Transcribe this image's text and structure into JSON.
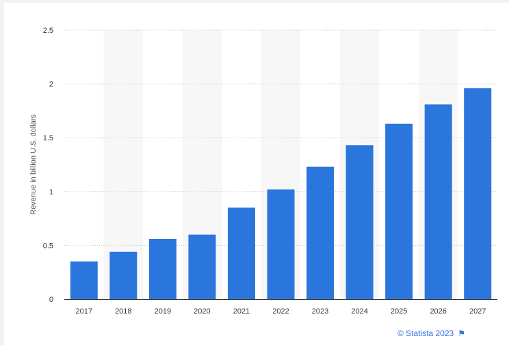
{
  "chart_data": {
    "type": "bar",
    "categories": [
      "2017",
      "2018",
      "2019",
      "2020",
      "2021",
      "2022",
      "2023",
      "2024",
      "2025",
      "2026",
      "2027"
    ],
    "values": [
      0.35,
      0.44,
      0.56,
      0.6,
      0.85,
      1.02,
      1.23,
      1.43,
      1.63,
      1.81,
      1.96
    ],
    "title": "",
    "xlabel": "",
    "ylabel": "Revenue in billion U.S. dollars",
    "ylim": [
      0,
      2.5
    ],
    "yticks": [
      0,
      0.5,
      1,
      1.5,
      2,
      2.5
    ],
    "ytick_labels": [
      "0",
      "0.5",
      "1",
      "1.5",
      "2",
      "2.5"
    ],
    "grid": true,
    "bar_color": "#2a76dd",
    "alternate_band_color": "#f7f7f7"
  },
  "footer": {
    "credit": "© Statista 2023",
    "flag_icon": "flag-icon"
  }
}
